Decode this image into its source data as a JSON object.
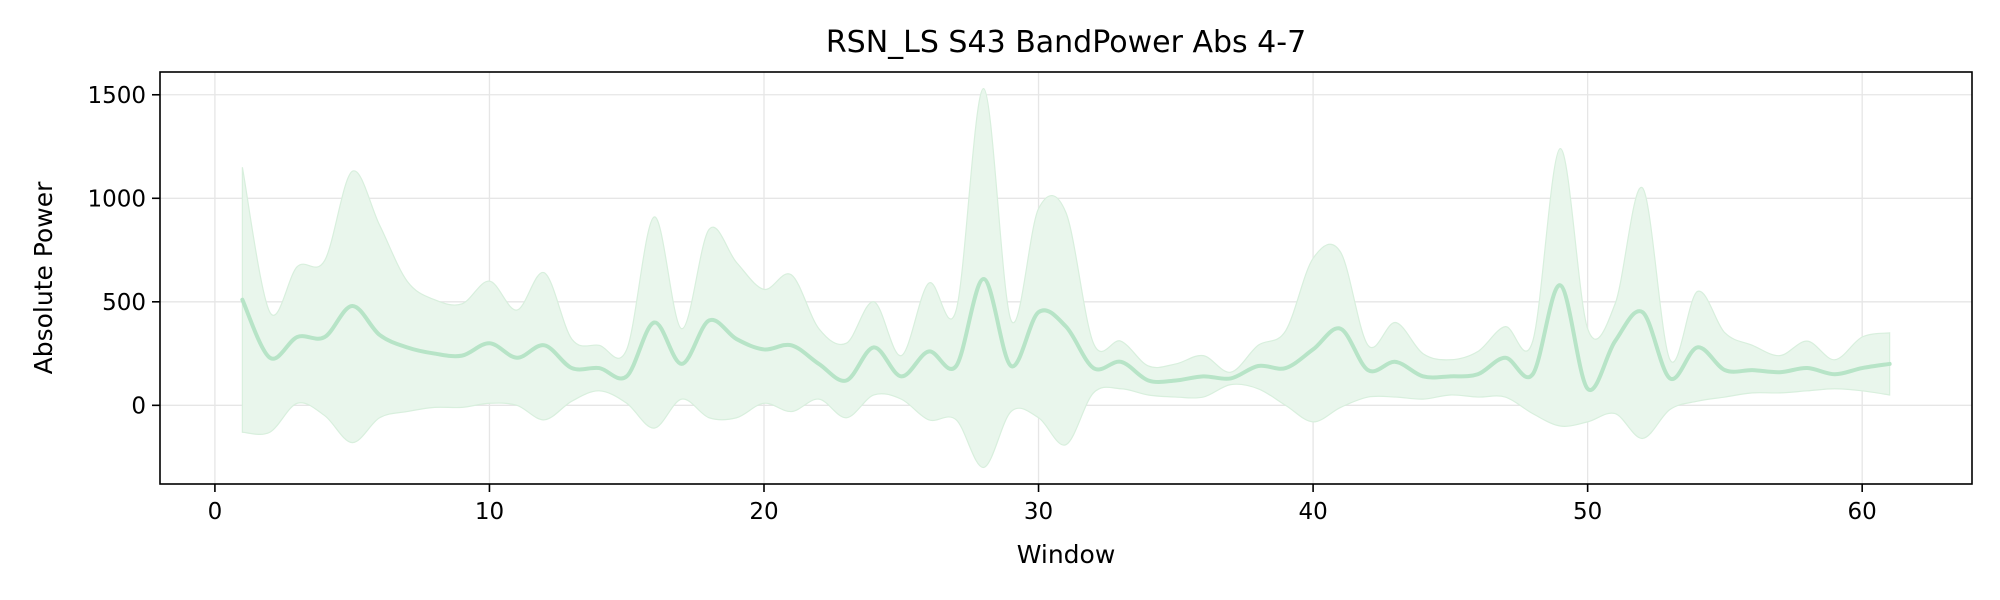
{
  "chart_data": {
    "type": "area",
    "title": "RSN_LS S43 BandPower Abs 4-7",
    "xlabel": "Window",
    "ylabel": "Absolute Power",
    "xlim": [
      -2,
      64
    ],
    "ylim": [
      -380,
      1610
    ],
    "xticks": [
      0,
      10,
      20,
      30,
      40,
      50,
      60
    ],
    "yticks": [
      0,
      500,
      1000,
      1500
    ],
    "grid": true,
    "colors": {
      "line": "#b7e4c7",
      "band": "#e9f6ec",
      "band_edge": "#d8efdd"
    },
    "series": [
      {
        "x": [
          1,
          2,
          3,
          4,
          5,
          6,
          7,
          8,
          9,
          10,
          11,
          12,
          13,
          14,
          15,
          16,
          17,
          18,
          19,
          20,
          21,
          22,
          23,
          24,
          25,
          26,
          27,
          28,
          29,
          30,
          31,
          32,
          33,
          34,
          35,
          36,
          37,
          38,
          39,
          40,
          41,
          42,
          43,
          44,
          45,
          46,
          47,
          48,
          49,
          50,
          51,
          52,
          53,
          54,
          55,
          56,
          57,
          58,
          59,
          60,
          61
        ],
        "mean": [
          510,
          230,
          330,
          330,
          480,
          340,
          280,
          250,
          240,
          300,
          230,
          290,
          180,
          180,
          140,
          400,
          200,
          410,
          320,
          270,
          290,
          200,
          120,
          280,
          140,
          260,
          190,
          610,
          190,
          450,
          380,
          180,
          210,
          120,
          120,
          140,
          130,
          190,
          180,
          270,
          370,
          170,
          210,
          140,
          140,
          150,
          230,
          150,
          580,
          80,
          310,
          450,
          130,
          280,
          170,
          170,
          160,
          180,
          150,
          180,
          200
        ],
        "upper": [
          1150,
          450,
          670,
          700,
          1130,
          870,
          600,
          510,
          490,
          600,
          460,
          640,
          320,
          290,
          270,
          910,
          370,
          850,
          690,
          560,
          630,
          370,
          300,
          500,
          240,
          590,
          460,
          1530,
          410,
          950,
          930,
          300,
          310,
          190,
          200,
          240,
          160,
          290,
          360,
          710,
          740,
          290,
          400,
          250,
          220,
          260,
          380,
          310,
          1240,
          370,
          490,
          1050,
          220,
          550,
          350,
          290,
          240,
          310,
          220,
          330,
          350
        ],
        "lower": [
          -130,
          -130,
          10,
          -50,
          -180,
          -60,
          -30,
          -10,
          -10,
          10,
          0,
          -70,
          20,
          70,
          10,
          -110,
          30,
          -60,
          -60,
          10,
          -30,
          30,
          -60,
          50,
          30,
          -70,
          -70,
          -300,
          -30,
          -60,
          -190,
          60,
          80,
          50,
          40,
          40,
          100,
          80,
          0,
          -80,
          -10,
          40,
          40,
          30,
          50,
          40,
          40,
          -40,
          -100,
          -80,
          -40,
          -160,
          -20,
          20,
          40,
          60,
          60,
          70,
          80,
          70,
          50
        ]
      }
    ]
  }
}
